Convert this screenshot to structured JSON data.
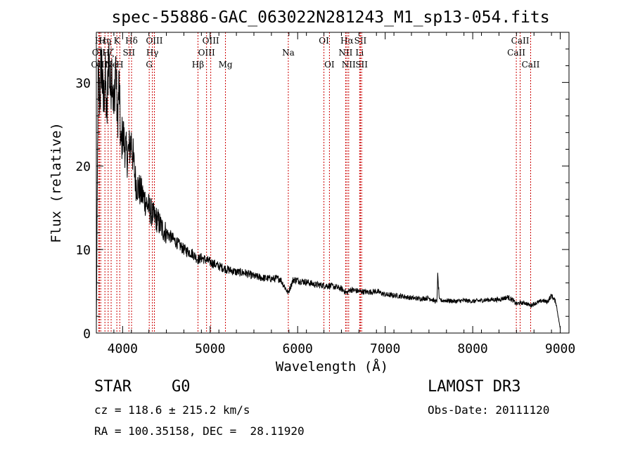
{
  "chart_data": {
    "type": "line",
    "title": "spec-55886-GAC_063022N281243_M1_sp13-054.fits",
    "xlabel": "Wavelength (Å)",
    "ylabel": "Flux (relative)",
    "xlim": [
      3700,
      9100
    ],
    "ylim": [
      0,
      36
    ],
    "xticks": [
      4000,
      5000,
      6000,
      7000,
      8000,
      9000
    ],
    "yticks": [
      0,
      10,
      20,
      30
    ],
    "grid": false,
    "series": [
      {
        "name": "spectrum",
        "x": [
          3700,
          3720,
          3740,
          3760,
          3780,
          3800,
          3820,
          3840,
          3860,
          3880,
          3900,
          3920,
          3940,
          3960,
          3980,
          4000,
          4050,
          4100,
          4150,
          4200,
          4250,
          4300,
          4350,
          4400,
          4450,
          4500,
          4600,
          4700,
          4800,
          4862,
          4900,
          5000,
          5100,
          5200,
          5300,
          5400,
          5500,
          5600,
          5700,
          5800,
          5890,
          5950,
          6000,
          6100,
          6200,
          6300,
          6400,
          6500,
          6563,
          6600,
          6700,
          6800,
          6900,
          7000,
          7100,
          7200,
          7300,
          7400,
          7500,
          7590,
          7600,
          7620,
          7700,
          7800,
          7900,
          8000,
          8100,
          8200,
          8300,
          8400,
          8450,
          8498,
          8542,
          8600,
          8662,
          8700,
          8800,
          8850,
          8900,
          8950,
          9000
        ],
        "values": [
          1,
          30,
          28,
          33,
          27,
          31,
          25,
          34,
          29,
          32,
          26,
          33,
          25,
          30,
          22,
          24,
          21,
          23,
          18,
          17,
          16,
          15,
          14,
          13.5,
          12.5,
          12,
          11,
          10,
          9.5,
          8.8,
          9,
          8.5,
          8,
          7.6,
          7.3,
          7.2,
          6.8,
          6.6,
          6.5,
          6.5,
          4.8,
          6.4,
          6.3,
          6.1,
          5.8,
          5.7,
          5.6,
          5.3,
          4.8,
          5.2,
          5.0,
          4.9,
          5.0,
          4.6,
          4.5,
          4.4,
          4.2,
          4.1,
          4.2,
          3.7,
          6.8,
          3.9,
          3.9,
          3.8,
          3.9,
          3.8,
          3.9,
          4.0,
          4.0,
          4.3,
          4.0,
          3.5,
          3.6,
          3.6,
          3.3,
          3.5,
          3.9,
          3.7,
          4.5,
          3.7,
          0.5
        ]
      }
    ],
    "line_markers": [
      {
        "label": "Hε",
        "wavelength": 3750,
        "row": 1
      },
      {
        "label": "OII",
        "wavelength": 3727,
        "row": 2
      },
      {
        "label": "OIII",
        "wavelength": 3735,
        "row": 3
      },
      {
        "label": "Hη",
        "wavelength": 3798,
        "row": 1
      },
      {
        "label": "Hζ",
        "wavelength": 3835,
        "row": 2
      },
      {
        "label": "Ne",
        "wavelength": 3869,
        "row": 3
      },
      {
        "label": "K",
        "wavelength": 3934,
        "row": 1
      },
      {
        "label": "H",
        "wavelength": 3968,
        "row": 3
      },
      {
        "label": "SII",
        "wavelength": 4072,
        "row": 2
      },
      {
        "label": "Hδ",
        "wavelength": 4102,
        "row": 1
      },
      {
        "label": "OIII",
        "wavelength": 4363,
        "row": 1
      },
      {
        "label": "Hγ",
        "wavelength": 4340,
        "row": 2
      },
      {
        "label": "G",
        "wavelength": 4304,
        "row": 3
      },
      {
        "label": "Hβ",
        "wavelength": 4861,
        "row": 3
      },
      {
        "label": "OIII",
        "wavelength": 5007,
        "row": 1
      },
      {
        "label": "OIII",
        "wavelength": 4959,
        "row": 2
      },
      {
        "label": "Mg",
        "wavelength": 5175,
        "row": 3
      },
      {
        "label": "Na",
        "wavelength": 5893,
        "row": 2
      },
      {
        "label": "OI",
        "wavelength": 6300,
        "row": 1
      },
      {
        "label": "OI",
        "wavelength": 6363,
        "row": 3
      },
      {
        "label": "Hα",
        "wavelength": 6563,
        "row": 1
      },
      {
        "label": "NII",
        "wavelength": 6548,
        "row": 2
      },
      {
        "label": "NII",
        "wavelength": 6583,
        "row": 3
      },
      {
        "label": "SII",
        "wavelength": 6717,
        "row": 1
      },
      {
        "label": "Li",
        "wavelength": 6708,
        "row": 2
      },
      {
        "label": "SII",
        "wavelength": 6731,
        "row": 3
      },
      {
        "label": "CaII",
        "wavelength": 8542,
        "row": 1
      },
      {
        "label": "CaII",
        "wavelength": 8498,
        "row": 2
      },
      {
        "label": "CaII",
        "wavelength": 8662,
        "row": 3
      }
    ]
  },
  "info": {
    "object_class": "STAR",
    "subclass": "G0",
    "survey": "LAMOST DR3",
    "redshift": "cz = 118.6 ± 215.2 km/s",
    "obs_date": "Obs-Date: 20111120",
    "coords": "RA = 100.35158, DEC =  28.11920"
  }
}
